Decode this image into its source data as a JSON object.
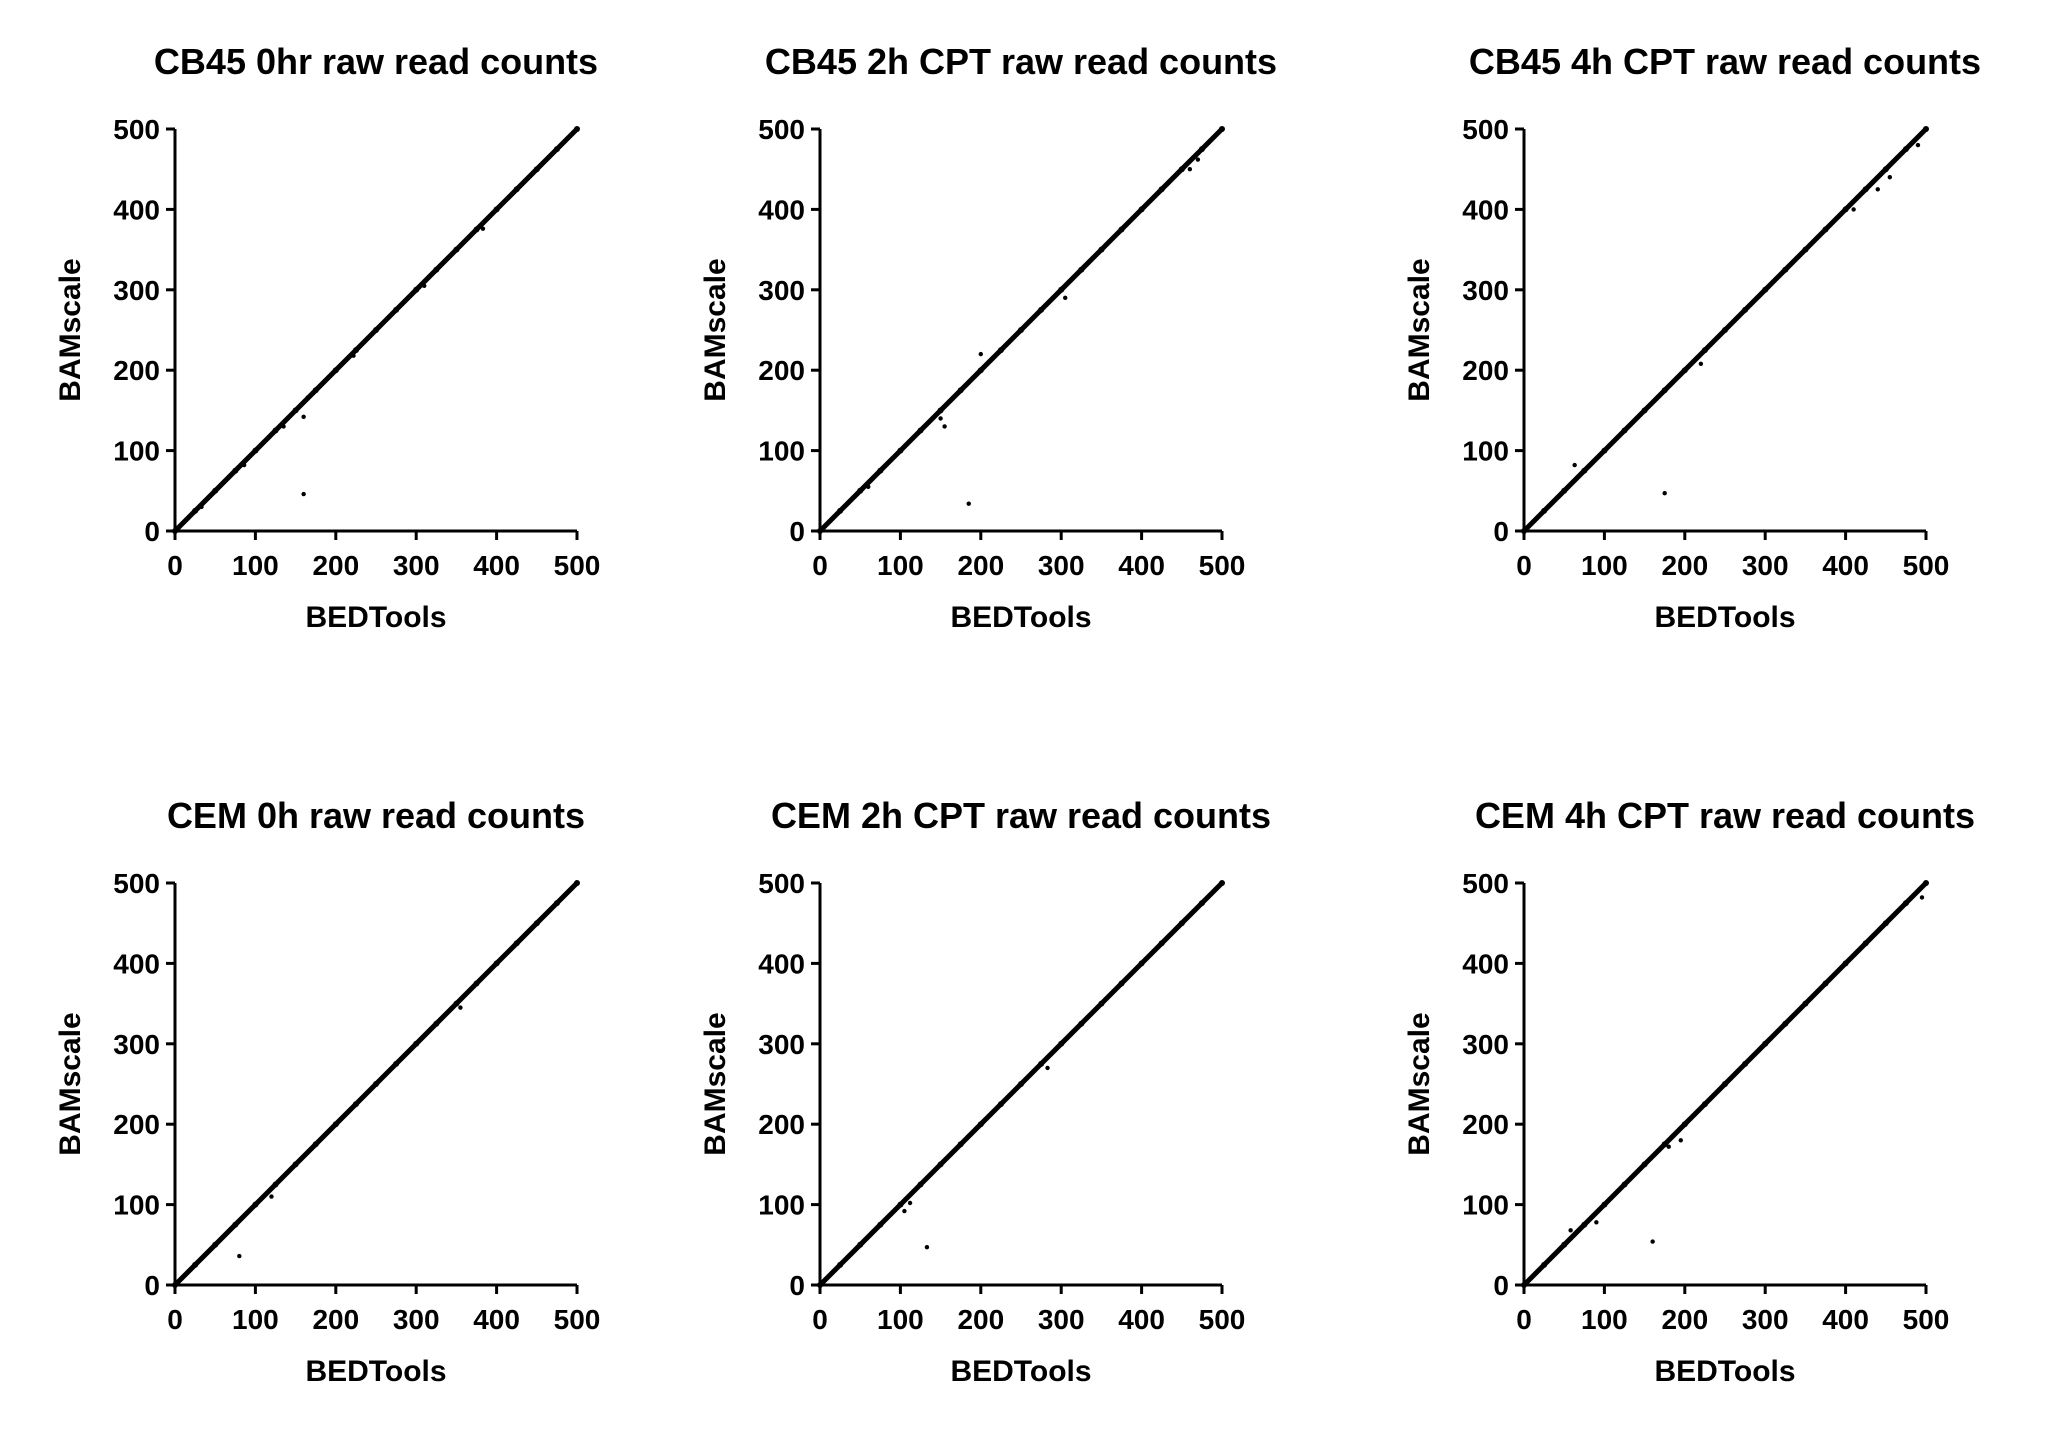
{
  "chart_data": [
    {
      "type": "scatter",
      "title": "CB45 0hr raw read counts",
      "xlabel": "BEDTools",
      "ylabel": "BAMscale",
      "xlim": [
        0,
        500
      ],
      "ylim": [
        0,
        500
      ],
      "xticks": [
        "0",
        "100",
        "200",
        "300",
        "400",
        "500"
      ],
      "yticks": [
        "0",
        "100",
        "200",
        "300",
        "400",
        "500"
      ],
      "grid": false,
      "series": [
        {
          "x": [
            0,
            25,
            50,
            75,
            100,
            125,
            150,
            175,
            200,
            225,
            250,
            275,
            300,
            325,
            350,
            375,
            400,
            425,
            450,
            475,
            500,
            33,
            86,
            135,
            160,
            165,
            222,
            310,
            383,
            160
          ],
          "y": [
            0,
            25,
            50,
            75,
            100,
            125,
            150,
            175,
            200,
            225,
            250,
            275,
            300,
            325,
            350,
            375,
            400,
            425,
            450,
            475,
            500,
            30,
            82,
            130,
            142,
            166,
            218,
            305,
            376,
            46
          ]
        }
      ]
    },
    {
      "type": "scatter",
      "title": "CB45 2h CPT raw read counts",
      "xlabel": "BEDTools",
      "ylabel": "BAMscale",
      "xlim": [
        0,
        500
      ],
      "ylim": [
        0,
        500
      ],
      "xticks": [
        "0",
        "100",
        "200",
        "300",
        "400",
        "500"
      ],
      "yticks": [
        "0",
        "100",
        "200",
        "300",
        "400",
        "500"
      ],
      "grid": false,
      "series": [
        {
          "x": [
            0,
            25,
            50,
            75,
            100,
            125,
            150,
            175,
            200,
            225,
            250,
            275,
            300,
            325,
            350,
            375,
            400,
            425,
            450,
            475,
            500,
            60,
            150,
            155,
            200,
            305,
            460,
            470,
            185
          ],
          "y": [
            0,
            25,
            50,
            75,
            100,
            125,
            150,
            175,
            200,
            225,
            250,
            275,
            300,
            325,
            350,
            375,
            400,
            425,
            450,
            475,
            500,
            55,
            140,
            130,
            220,
            290,
            450,
            462,
            34
          ]
        }
      ]
    },
    {
      "type": "scatter",
      "title": "CB45 4h CPT raw read counts",
      "xlabel": "BEDTools",
      "ylabel": "BAMscale",
      "xlim": [
        0,
        500
      ],
      "ylim": [
        0,
        500
      ],
      "xticks": [
        "0",
        "100",
        "200",
        "300",
        "400",
        "500"
      ],
      "yticks": [
        "0",
        "100",
        "200",
        "300",
        "400",
        "500"
      ],
      "grid": false,
      "series": [
        {
          "x": [
            0,
            25,
            50,
            75,
            100,
            125,
            150,
            175,
            200,
            225,
            250,
            275,
            300,
            325,
            350,
            375,
            400,
            425,
            450,
            475,
            500,
            63,
            220,
            410,
            440,
            455,
            490,
            175
          ],
          "y": [
            0,
            25,
            50,
            75,
            100,
            125,
            150,
            175,
            200,
            225,
            250,
            275,
            300,
            325,
            350,
            375,
            400,
            425,
            450,
            475,
            500,
            82,
            208,
            400,
            425,
            440,
            480,
            47
          ]
        }
      ]
    },
    {
      "type": "scatter",
      "title": "CEM 0h raw read counts",
      "xlabel": "BEDTools",
      "ylabel": "BAMscale",
      "xlim": [
        0,
        500
      ],
      "ylim": [
        0,
        500
      ],
      "xticks": [
        "0",
        "100",
        "200",
        "300",
        "400",
        "500"
      ],
      "yticks": [
        "0",
        "100",
        "200",
        "300",
        "400",
        "500"
      ],
      "grid": false,
      "series": [
        {
          "x": [
            0,
            25,
            50,
            75,
            100,
            125,
            150,
            175,
            200,
            225,
            250,
            275,
            300,
            325,
            350,
            375,
            400,
            425,
            450,
            475,
            500,
            120,
            355,
            80
          ],
          "y": [
            0,
            25,
            50,
            75,
            100,
            125,
            150,
            175,
            200,
            225,
            250,
            275,
            300,
            325,
            350,
            375,
            400,
            425,
            450,
            475,
            500,
            110,
            345,
            36
          ]
        }
      ]
    },
    {
      "type": "scatter",
      "title": "CEM 2h CPT raw read counts",
      "xlabel": "BEDTools",
      "ylabel": "BAMscale",
      "xlim": [
        0,
        500
      ],
      "ylim": [
        0,
        500
      ],
      "xticks": [
        "0",
        "100",
        "200",
        "300",
        "400",
        "500"
      ],
      "yticks": [
        "0",
        "100",
        "200",
        "300",
        "400",
        "500"
      ],
      "grid": false,
      "series": [
        {
          "x": [
            0,
            25,
            50,
            75,
            100,
            125,
            150,
            175,
            200,
            225,
            250,
            275,
            300,
            325,
            350,
            375,
            400,
            425,
            450,
            475,
            500,
            105,
            112,
            283,
            133
          ],
          "y": [
            0,
            25,
            50,
            75,
            100,
            125,
            150,
            175,
            200,
            225,
            250,
            275,
            300,
            325,
            350,
            375,
            400,
            425,
            450,
            475,
            500,
            92,
            102,
            270,
            47
          ]
        }
      ]
    },
    {
      "type": "scatter",
      "title": "CEM 4h CPT raw read counts",
      "xlabel": "BEDTools",
      "ylabel": "BAMscale",
      "xlim": [
        0,
        500
      ],
      "ylim": [
        0,
        500
      ],
      "xticks": [
        "0",
        "100",
        "200",
        "300",
        "400",
        "500"
      ],
      "yticks": [
        "0",
        "100",
        "200",
        "300",
        "400",
        "500"
      ],
      "grid": false,
      "series": [
        {
          "x": [
            0,
            25,
            50,
            75,
            100,
            125,
            150,
            175,
            200,
            225,
            250,
            275,
            300,
            325,
            350,
            375,
            400,
            425,
            450,
            475,
            500,
            58,
            90,
            180,
            195,
            495,
            160
          ],
          "y": [
            0,
            25,
            50,
            75,
            100,
            125,
            150,
            175,
            200,
            225,
            250,
            275,
            300,
            325,
            350,
            375,
            400,
            425,
            450,
            475,
            500,
            68,
            78,
            172,
            180,
            482,
            54
          ]
        }
      ]
    }
  ]
}
